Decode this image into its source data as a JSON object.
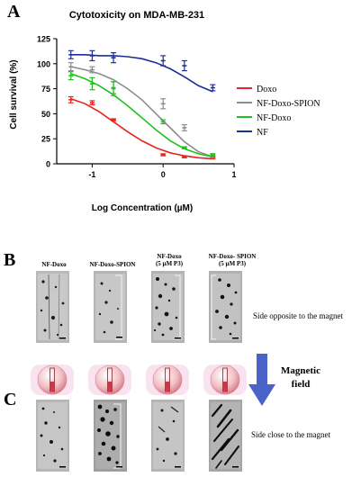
{
  "figure": {
    "panel_letters": [
      "A",
      "B",
      "C"
    ],
    "micro_labels": [
      [
        "NF-Doxo"
      ],
      [
        "NF-Doxo-SPION"
      ],
      [
        "NF-Doxo",
        "(5 µM P3)"
      ],
      [
        "NF-Doxo- SPION",
        "(5 µM P3)"
      ]
    ],
    "side_opposite": "Side opposite to the magnet",
    "side_close": "Side close  to the magnet",
    "magnetic_field": [
      "Magnetic",
      "field"
    ],
    "colors": {
      "doxo": "#e8231f",
      "nf_doxo_spion": "#8c8c8c",
      "nf_doxo": "#1ec21e",
      "nf": "#1f2d96",
      "arrow": "#4a63c9",
      "disc": "#e9aab0"
    }
  },
  "chart_data": {
    "type": "line",
    "title": "Cytotoxicity on  MDA-MB-231",
    "xlabel": "Log Concentration (µM)",
    "ylabel": "Cell survival (%)",
    "xlim": [
      -1.5,
      1.0
    ],
    "ylim": [
      0,
      125
    ],
    "x_ticks": [
      -1,
      0,
      1
    ],
    "x_tick_labels": [
      "-1",
      "0",
      "1"
    ],
    "y_ticks": [
      0,
      25,
      50,
      75,
      100,
      125
    ],
    "y_tick_labels": [
      "0",
      "25",
      "50",
      "75",
      "100",
      "125"
    ],
    "legend_position": "right",
    "series": [
      {
        "name": "Doxo",
        "color": "#e8231f",
        "x": [
          -1.3,
          -1.0,
          -0.7,
          0.0,
          0.3,
          0.7
        ],
        "y": [
          64,
          61,
          44,
          9,
          7,
          6
        ],
        "err": [
          3,
          2,
          1,
          1,
          1,
          1
        ],
        "curve": [
          65,
          60,
          52,
          42,
          32,
          23,
          16,
          11,
          8,
          6,
          5
        ]
      },
      {
        "name": "NF-Doxo-SPION",
        "color": "#8c8c8c",
        "x": [
          -1.3,
          -1.0,
          -0.7,
          0.0,
          0.3,
          0.7
        ],
        "y": [
          97,
          94,
          75,
          60,
          36,
          8
        ],
        "err": [
          4,
          3,
          7,
          5,
          3,
          2
        ],
        "curve": [
          97,
          94,
          90,
          84,
          75,
          64,
          50,
          36,
          22,
          12,
          7
        ]
      },
      {
        "name": "NF-Doxo",
        "color": "#1ec21e",
        "x": [
          -1.3,
          -1.0,
          -0.7,
          0.0,
          0.3,
          0.7
        ],
        "y": [
          88,
          80,
          76,
          42,
          16,
          9
        ],
        "err": [
          4,
          6,
          6,
          2,
          1,
          1
        ],
        "curve": [
          90,
          85,
          78,
          69,
          58,
          46,
          34,
          23,
          15,
          10,
          7
        ]
      },
      {
        "name": "NF",
        "color": "#1f2d96",
        "x": [
          -1.3,
          -1.0,
          -0.7,
          0.0,
          0.3,
          0.7
        ],
        "y": [
          109,
          108,
          106,
          103,
          98,
          76
        ],
        "err": [
          4,
          5,
          5,
          5,
          5,
          3
        ],
        "curve": [
          109,
          109,
          108,
          108,
          107,
          105,
          101,
          95,
          87,
          78,
          72
        ]
      }
    ]
  }
}
